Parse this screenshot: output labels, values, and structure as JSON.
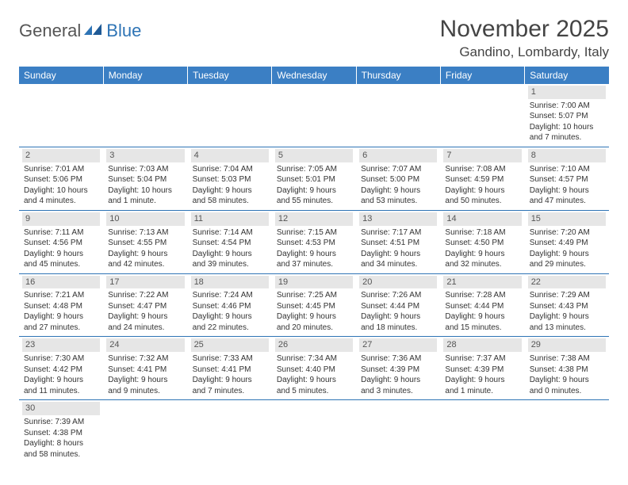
{
  "logo": {
    "text_general": "General",
    "text_blue": "Blue"
  },
  "title": "November 2025",
  "location": "Gandino, Lombardy, Italy",
  "header_bg": "#3b7fc4",
  "header_text_color": "#ffffff",
  "day_head_bg": "#e6e6e6",
  "divider_color": "#2e74b5",
  "columns": [
    "Sunday",
    "Monday",
    "Tuesday",
    "Wednesday",
    "Thursday",
    "Friday",
    "Saturday"
  ],
  "weeks": [
    [
      null,
      null,
      null,
      null,
      null,
      null,
      {
        "n": "1",
        "sunrise": "Sunrise: 7:00 AM",
        "sunset": "Sunset: 5:07 PM",
        "daylight": "Daylight: 10 hours and 7 minutes."
      }
    ],
    [
      {
        "n": "2",
        "sunrise": "Sunrise: 7:01 AM",
        "sunset": "Sunset: 5:06 PM",
        "daylight": "Daylight: 10 hours and 4 minutes."
      },
      {
        "n": "3",
        "sunrise": "Sunrise: 7:03 AM",
        "sunset": "Sunset: 5:04 PM",
        "daylight": "Daylight: 10 hours and 1 minute."
      },
      {
        "n": "4",
        "sunrise": "Sunrise: 7:04 AM",
        "sunset": "Sunset: 5:03 PM",
        "daylight": "Daylight: 9 hours and 58 minutes."
      },
      {
        "n": "5",
        "sunrise": "Sunrise: 7:05 AM",
        "sunset": "Sunset: 5:01 PM",
        "daylight": "Daylight: 9 hours and 55 minutes."
      },
      {
        "n": "6",
        "sunrise": "Sunrise: 7:07 AM",
        "sunset": "Sunset: 5:00 PM",
        "daylight": "Daylight: 9 hours and 53 minutes."
      },
      {
        "n": "7",
        "sunrise": "Sunrise: 7:08 AM",
        "sunset": "Sunset: 4:59 PM",
        "daylight": "Daylight: 9 hours and 50 minutes."
      },
      {
        "n": "8",
        "sunrise": "Sunrise: 7:10 AM",
        "sunset": "Sunset: 4:57 PM",
        "daylight": "Daylight: 9 hours and 47 minutes."
      }
    ],
    [
      {
        "n": "9",
        "sunrise": "Sunrise: 7:11 AM",
        "sunset": "Sunset: 4:56 PM",
        "daylight": "Daylight: 9 hours and 45 minutes."
      },
      {
        "n": "10",
        "sunrise": "Sunrise: 7:13 AM",
        "sunset": "Sunset: 4:55 PM",
        "daylight": "Daylight: 9 hours and 42 minutes."
      },
      {
        "n": "11",
        "sunrise": "Sunrise: 7:14 AM",
        "sunset": "Sunset: 4:54 PM",
        "daylight": "Daylight: 9 hours and 39 minutes."
      },
      {
        "n": "12",
        "sunrise": "Sunrise: 7:15 AM",
        "sunset": "Sunset: 4:53 PM",
        "daylight": "Daylight: 9 hours and 37 minutes."
      },
      {
        "n": "13",
        "sunrise": "Sunrise: 7:17 AM",
        "sunset": "Sunset: 4:51 PM",
        "daylight": "Daylight: 9 hours and 34 minutes."
      },
      {
        "n": "14",
        "sunrise": "Sunrise: 7:18 AM",
        "sunset": "Sunset: 4:50 PM",
        "daylight": "Daylight: 9 hours and 32 minutes."
      },
      {
        "n": "15",
        "sunrise": "Sunrise: 7:20 AM",
        "sunset": "Sunset: 4:49 PM",
        "daylight": "Daylight: 9 hours and 29 minutes."
      }
    ],
    [
      {
        "n": "16",
        "sunrise": "Sunrise: 7:21 AM",
        "sunset": "Sunset: 4:48 PM",
        "daylight": "Daylight: 9 hours and 27 minutes."
      },
      {
        "n": "17",
        "sunrise": "Sunrise: 7:22 AM",
        "sunset": "Sunset: 4:47 PM",
        "daylight": "Daylight: 9 hours and 24 minutes."
      },
      {
        "n": "18",
        "sunrise": "Sunrise: 7:24 AM",
        "sunset": "Sunset: 4:46 PM",
        "daylight": "Daylight: 9 hours and 22 minutes."
      },
      {
        "n": "19",
        "sunrise": "Sunrise: 7:25 AM",
        "sunset": "Sunset: 4:45 PM",
        "daylight": "Daylight: 9 hours and 20 minutes."
      },
      {
        "n": "20",
        "sunrise": "Sunrise: 7:26 AM",
        "sunset": "Sunset: 4:44 PM",
        "daylight": "Daylight: 9 hours and 18 minutes."
      },
      {
        "n": "21",
        "sunrise": "Sunrise: 7:28 AM",
        "sunset": "Sunset: 4:44 PM",
        "daylight": "Daylight: 9 hours and 15 minutes."
      },
      {
        "n": "22",
        "sunrise": "Sunrise: 7:29 AM",
        "sunset": "Sunset: 4:43 PM",
        "daylight": "Daylight: 9 hours and 13 minutes."
      }
    ],
    [
      {
        "n": "23",
        "sunrise": "Sunrise: 7:30 AM",
        "sunset": "Sunset: 4:42 PM",
        "daylight": "Daylight: 9 hours and 11 minutes."
      },
      {
        "n": "24",
        "sunrise": "Sunrise: 7:32 AM",
        "sunset": "Sunset: 4:41 PM",
        "daylight": "Daylight: 9 hours and 9 minutes."
      },
      {
        "n": "25",
        "sunrise": "Sunrise: 7:33 AM",
        "sunset": "Sunset: 4:41 PM",
        "daylight": "Daylight: 9 hours and 7 minutes."
      },
      {
        "n": "26",
        "sunrise": "Sunrise: 7:34 AM",
        "sunset": "Sunset: 4:40 PM",
        "daylight": "Daylight: 9 hours and 5 minutes."
      },
      {
        "n": "27",
        "sunrise": "Sunrise: 7:36 AM",
        "sunset": "Sunset: 4:39 PM",
        "daylight": "Daylight: 9 hours and 3 minutes."
      },
      {
        "n": "28",
        "sunrise": "Sunrise: 7:37 AM",
        "sunset": "Sunset: 4:39 PM",
        "daylight": "Daylight: 9 hours and 1 minute."
      },
      {
        "n": "29",
        "sunrise": "Sunrise: 7:38 AM",
        "sunset": "Sunset: 4:38 PM",
        "daylight": "Daylight: 9 hours and 0 minutes."
      }
    ],
    [
      {
        "n": "30",
        "sunrise": "Sunrise: 7:39 AM",
        "sunset": "Sunset: 4:38 PM",
        "daylight": "Daylight: 8 hours and 58 minutes."
      },
      null,
      null,
      null,
      null,
      null,
      null
    ]
  ]
}
